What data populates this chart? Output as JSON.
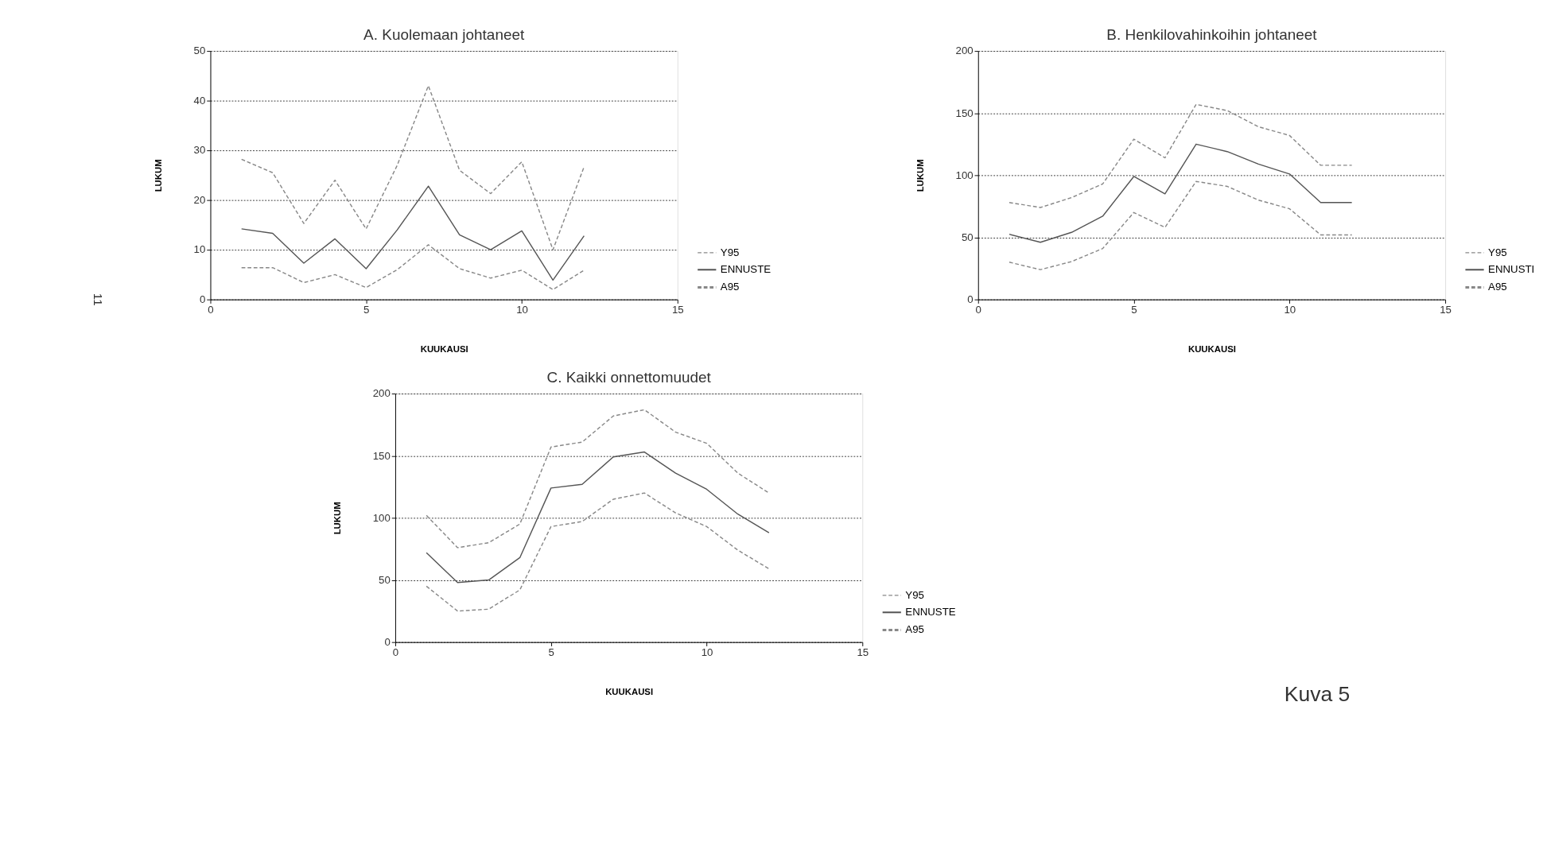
{
  "chart_data": [
    {
      "type": "line",
      "title": "A. Kuolemaan johtaneet",
      "xlabel": "KUUKAUSI",
      "ylabel": "LUKUM",
      "x": [
        1,
        2,
        3,
        4,
        5,
        6,
        7,
        8,
        9,
        10,
        11,
        12
      ],
      "xlim": [
        0,
        15
      ],
      "xticks": [
        0,
        5,
        10,
        15
      ],
      "ylim": [
        0,
        50
      ],
      "yticks": [
        0,
        10,
        20,
        30,
        40,
        50
      ],
      "grid": "y",
      "legend": "right",
      "annotations": [
        "11"
      ],
      "series": [
        {
          "name": "Y95",
          "color": "#888888",
          "line_style": "dashed",
          "values": [
            28.2,
            25.5,
            15.3,
            24,
            14.2,
            27,
            43,
            26,
            21.3,
            27.7,
            10,
            26.7
          ]
        },
        {
          "name": "ENNUSTE",
          "color": "#555555",
          "line_style": "solid",
          "values": [
            14.2,
            13.3,
            7.3,
            12.2,
            6.2,
            14,
            22.8,
            13,
            10,
            13.8,
            3.9,
            12.8
          ]
        },
        {
          "name": "A95",
          "color": "#888888",
          "line_style": "dashed",
          "values": [
            6.4,
            6.4,
            3.4,
            5,
            2.4,
            6,
            11,
            6.2,
            4.3,
            5.9,
            2,
            5.9
          ]
        }
      ]
    },
    {
      "type": "line",
      "title": "B. Henkilovahinkoihin johtaneet",
      "xlabel": "KUUKAUSI",
      "ylabel": "LUKUM",
      "x": [
        1,
        2,
        3,
        4,
        5,
        6,
        7,
        8,
        9,
        10,
        11,
        12
      ],
      "xlim": [
        0,
        15
      ],
      "xticks": [
        0,
        5,
        10,
        15
      ],
      "ylim": [
        0,
        200
      ],
      "yticks": [
        0,
        50,
        100,
        150,
        200
      ],
      "grid": "y",
      "legend": "right",
      "series": [
        {
          "name": "Y95",
          "color": "#888888",
          "line_style": "dashed",
          "values": [
            78,
            74,
            82,
            93,
            129,
            114,
            157,
            152,
            139,
            132,
            108,
            108
          ]
        },
        {
          "name": "ENNUSTI",
          "color": "#555555",
          "line_style": "solid",
          "values": [
            52.5,
            46,
            54,
            67,
            99,
            85,
            125,
            119,
            109,
            101,
            78,
            78
          ]
        },
        {
          "name": "A95",
          "color": "#888888",
          "line_style": "dashed",
          "values": [
            30,
            24,
            30.5,
            41,
            70,
            58,
            95,
            91,
            80,
            73,
            52,
            52
          ]
        }
      ]
    },
    {
      "type": "line",
      "title": "C. Kaikki onnettomuudet",
      "xlabel": "KUUKAUSI",
      "ylabel": "LUKUM",
      "x": [
        1,
        2,
        3,
        4,
        5,
        6,
        7,
        8,
        9,
        10,
        11,
        12
      ],
      "xlim": [
        0,
        15
      ],
      "xticks": [
        0,
        5,
        10,
        15
      ],
      "ylim": [
        0,
        200
      ],
      "yticks": [
        0,
        50,
        100,
        150,
        200
      ],
      "grid": "y",
      "legend": "right",
      "annotations": [
        "Kuva 5"
      ],
      "series": [
        {
          "name": "Y95",
          "color": "#888888",
          "line_style": "dashed",
          "values": [
            102,
            76,
            80,
            95,
            157,
            161,
            182,
            187,
            169,
            160,
            136,
            120
          ]
        },
        {
          "name": "ENNUSTE",
          "color": "#555555",
          "line_style": "solid",
          "values": [
            72,
            48,
            50,
            68,
            124,
            127,
            149,
            153,
            136,
            123,
            103,
            88
          ]
        },
        {
          "name": "A95",
          "color": "#888888",
          "line_style": "dashed",
          "values": [
            45,
            25,
            26.5,
            42,
            93,
            97,
            115,
            120,
            104,
            93,
            74,
            59
          ]
        }
      ]
    }
  ]
}
